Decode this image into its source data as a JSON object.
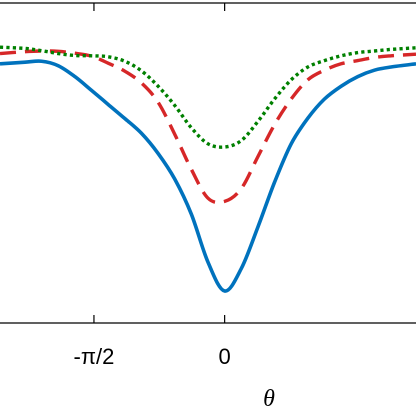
{
  "chart_data": {
    "type": "line",
    "xlabel": "θ",
    "ylabel": "",
    "xlim": [
      -2.7,
      2.3
    ],
    "ylim": [
      0,
      1
    ],
    "x_ticks": [
      {
        "value": -1.5707963,
        "label": "-π/2"
      },
      {
        "value": 0,
        "label": "0"
      }
    ],
    "grid": false,
    "series": [
      {
        "style": "solid",
        "color": "#0072BD",
        "x": [
          -2.7,
          -2.4,
          -2.2,
          -2.0,
          -1.8,
          -1.6,
          -1.4,
          -1.2,
          -1.0,
          -0.8,
          -0.6,
          -0.4,
          -0.2,
          0.0,
          0.2,
          0.4,
          0.6,
          0.8,
          1.0,
          1.2,
          1.4,
          1.6,
          1.8,
          2.0,
          2.3
        ],
        "y": [
          0.81,
          0.815,
          0.818,
          0.804,
          0.77,
          0.727,
          0.683,
          0.639,
          0.593,
          0.53,
          0.45,
          0.34,
          0.19,
          0.1,
          0.17,
          0.3,
          0.44,
          0.56,
          0.64,
          0.7,
          0.74,
          0.77,
          0.79,
          0.8,
          0.81
        ]
      },
      {
        "style": "dashed",
        "color": "#D62728",
        "x": [
          -2.7,
          -2.4,
          -2.2,
          -2.0,
          -1.8,
          -1.6,
          -1.4,
          -1.2,
          -1.0,
          -0.8,
          -0.6,
          -0.4,
          -0.2,
          0.0,
          0.2,
          0.4,
          0.6,
          0.8,
          1.0,
          1.2,
          1.4,
          1.6,
          1.8,
          2.0,
          2.3
        ],
        "y": [
          0.842,
          0.848,
          0.85,
          0.849,
          0.843,
          0.834,
          0.812,
          0.787,
          0.75,
          0.69,
          0.59,
          0.48,
          0.39,
          0.38,
          0.42,
          0.52,
          0.62,
          0.7,
          0.76,
          0.79,
          0.81,
          0.82,
          0.83,
          0.835,
          0.84
        ]
      },
      {
        "style": "dotted",
        "color": "#008000",
        "x": [
          -2.7,
          -2.4,
          -2.2,
          -2.0,
          -1.8,
          -1.6,
          -1.4,
          -1.2,
          -1.0,
          -0.8,
          -0.6,
          -0.4,
          -0.2,
          0.0,
          0.2,
          0.4,
          0.6,
          0.8,
          1.0,
          1.2,
          1.4,
          1.6,
          1.8,
          2.0,
          2.3
        ],
        "y": [
          0.862,
          0.858,
          0.851,
          0.842,
          0.836,
          0.835,
          0.832,
          0.818,
          0.788,
          0.74,
          0.68,
          0.61,
          0.56,
          0.55,
          0.57,
          0.63,
          0.7,
          0.76,
          0.8,
          0.82,
          0.835,
          0.845,
          0.85,
          0.855,
          0.86
        ]
      }
    ]
  }
}
